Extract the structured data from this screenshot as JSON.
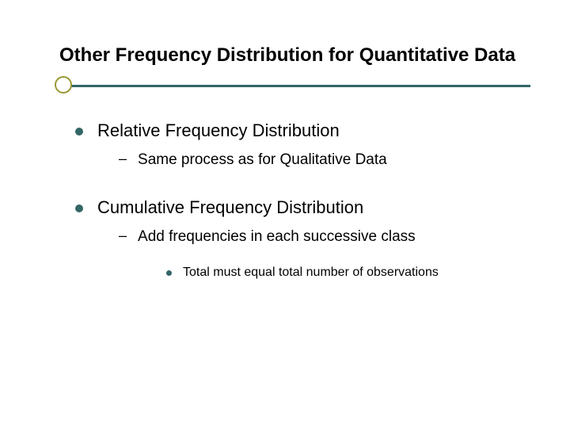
{
  "title": "Other Frequency Distribution for Quantitative Data",
  "colors": {
    "bullet": "#336666",
    "circle_border": "#999933",
    "line": "#336666",
    "text": "#000000",
    "background": "#ffffff"
  },
  "typography": {
    "title_fontsize": 24,
    "level1_fontsize": 22,
    "level2_fontsize": 19,
    "level3_fontsize": 16,
    "font_family": "Arial"
  },
  "items": [
    {
      "text": "Relative Frequency Distribution",
      "children": [
        {
          "text": "Same process as for Qualitative Data",
          "children": []
        }
      ]
    },
    {
      "text": "Cumulative Frequency Distribution",
      "children": [
        {
          "text": "Add frequencies in each successive class",
          "children": [
            {
              "text": "Total must equal total number of observations"
            }
          ]
        }
      ]
    }
  ]
}
